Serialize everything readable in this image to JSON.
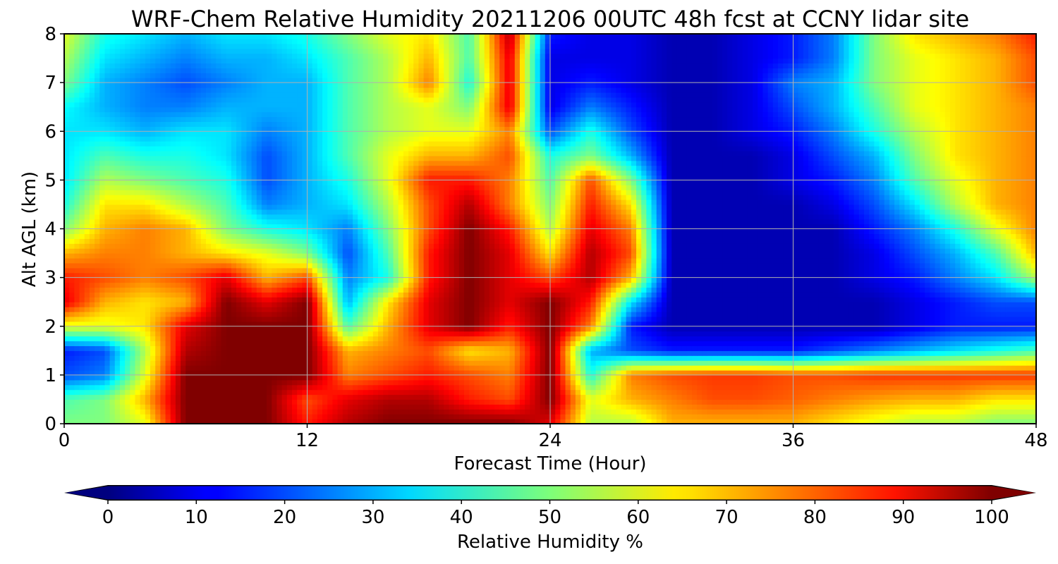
{
  "chart_data": {
    "type": "heatmap",
    "title": "WRF-Chem Relative Humidity 20211206 00UTC 48h fcst at CCNY lidar site",
    "xlabel": "Forecast Time (Hour)",
    "ylabel": "Alt AGL (km)",
    "xlim": [
      0,
      48
    ],
    "ylim": [
      0,
      8
    ],
    "xticks": [
      "0",
      "12",
      "24",
      "36",
      "48"
    ],
    "yticks": [
      "0",
      "1",
      "2",
      "3",
      "4",
      "5",
      "6",
      "7",
      "8"
    ],
    "grid": true,
    "colormap": "jet",
    "colorbar": {
      "label": "Relative Humidity %",
      "range": [
        0,
        100
      ],
      "ticks": [
        "0",
        "10",
        "20",
        "30",
        "40",
        "50",
        "60",
        "70",
        "80",
        "90",
        "100"
      ],
      "extend": "both",
      "orientation": "horizontal"
    },
    "x": [
      0,
      2,
      4,
      6,
      8,
      10,
      12,
      14,
      16,
      18,
      20,
      22,
      24,
      26,
      28,
      30,
      32,
      34,
      36,
      38,
      40,
      42,
      44,
      46,
      48
    ],
    "y": [
      0,
      0.5,
      1,
      1.5,
      2,
      2.5,
      3,
      3.5,
      4,
      4.5,
      5,
      5.5,
      6,
      6.5,
      7,
      7.5,
      8
    ],
    "z": [
      [
        50,
        50,
        60,
        100,
        100,
        100,
        85,
        95,
        100,
        100,
        100,
        100,
        90,
        55,
        55,
        70,
        70,
        70,
        70,
        65,
        60,
        55,
        55,
        50,
        50
      ],
      [
        45,
        50,
        70,
        100,
        100,
        100,
        80,
        90,
        95,
        95,
        85,
        80,
        100,
        60,
        70,
        75,
        80,
        80,
        78,
        75,
        72,
        70,
        70,
        65,
        65
      ],
      [
        20,
        25,
        60,
        100,
        100,
        100,
        100,
        75,
        80,
        85,
        80,
        75,
        100,
        40,
        75,
        80,
        82,
        82,
        80,
        80,
        82,
        82,
        82,
        82,
        82
      ],
      [
        15,
        20,
        55,
        95,
        100,
        100,
        100,
        70,
        75,
        80,
        65,
        70,
        100,
        30,
        20,
        15,
        15,
        15,
        15,
        20,
        25,
        30,
        35,
        40,
        45
      ],
      [
        60,
        60,
        65,
        90,
        100,
        100,
        100,
        45,
        70,
        90,
        100,
        85,
        100,
        75,
        15,
        5,
        5,
        5,
        5,
        5,
        5,
        10,
        15,
        15,
        15
      ],
      [
        90,
        70,
        65,
        70,
        100,
        90,
        100,
        30,
        65,
        90,
        100,
        90,
        100,
        85,
        35,
        5,
        5,
        5,
        5,
        5,
        5,
        10,
        15,
        20,
        20
      ],
      [
        85,
        80,
        75,
        80,
        90,
        70,
        80,
        25,
        40,
        85,
        100,
        90,
        80,
        95,
        70,
        5,
        5,
        5,
        5,
        5,
        10,
        15,
        25,
        35,
        55
      ],
      [
        70,
        75,
        75,
        70,
        65,
        60,
        50,
        20,
        45,
        85,
        100,
        90,
        65,
        95,
        80,
        5,
        5,
        5,
        5,
        5,
        10,
        20,
        30,
        45,
        70
      ],
      [
        50,
        70,
        75,
        70,
        50,
        40,
        35,
        25,
        50,
        80,
        100,
        85,
        55,
        90,
        75,
        5,
        5,
        5,
        5,
        5,
        15,
        25,
        40,
        60,
        75
      ],
      [
        40,
        65,
        65,
        55,
        45,
        25,
        30,
        35,
        55,
        80,
        95,
        75,
        50,
        85,
        65,
        5,
        5,
        5,
        5,
        10,
        20,
        35,
        55,
        70,
        75
      ],
      [
        35,
        55,
        50,
        45,
        40,
        20,
        30,
        40,
        60,
        85,
        85,
        75,
        45,
        80,
        50,
        5,
        5,
        5,
        10,
        15,
        25,
        45,
        60,
        70,
        75
      ],
      [
        35,
        45,
        40,
        40,
        35,
        20,
        30,
        45,
        60,
        70,
        70,
        80,
        40,
        50,
        30,
        5,
        5,
        5,
        10,
        20,
        30,
        50,
        65,
        70,
        75
      ],
      [
        35,
        35,
        30,
        35,
        35,
        25,
        30,
        45,
        55,
        60,
        60,
        75,
        20,
        40,
        20,
        5,
        5,
        10,
        15,
        25,
        40,
        55,
        65,
        70,
        75
      ],
      [
        38,
        30,
        25,
        25,
        30,
        30,
        30,
        45,
        55,
        60,
        50,
        90,
        10,
        25,
        15,
        5,
        5,
        10,
        20,
        30,
        45,
        60,
        65,
        70,
        75
      ],
      [
        50,
        30,
        25,
        20,
        25,
        30,
        30,
        45,
        55,
        75,
        40,
        90,
        10,
        15,
        10,
        5,
        5,
        10,
        25,
        30,
        50,
        60,
        65,
        70,
        80
      ],
      [
        55,
        35,
        30,
        25,
        30,
        30,
        35,
        45,
        55,
        70,
        45,
        90,
        10,
        10,
        10,
        5,
        5,
        10,
        15,
        25,
        50,
        60,
        65,
        70,
        80
      ],
      [
        60,
        40,
        35,
        30,
        35,
        35,
        40,
        50,
        60,
        65,
        45,
        95,
        15,
        10,
        10,
        5,
        5,
        10,
        15,
        25,
        50,
        65,
        70,
        75,
        85
      ]
    ]
  }
}
